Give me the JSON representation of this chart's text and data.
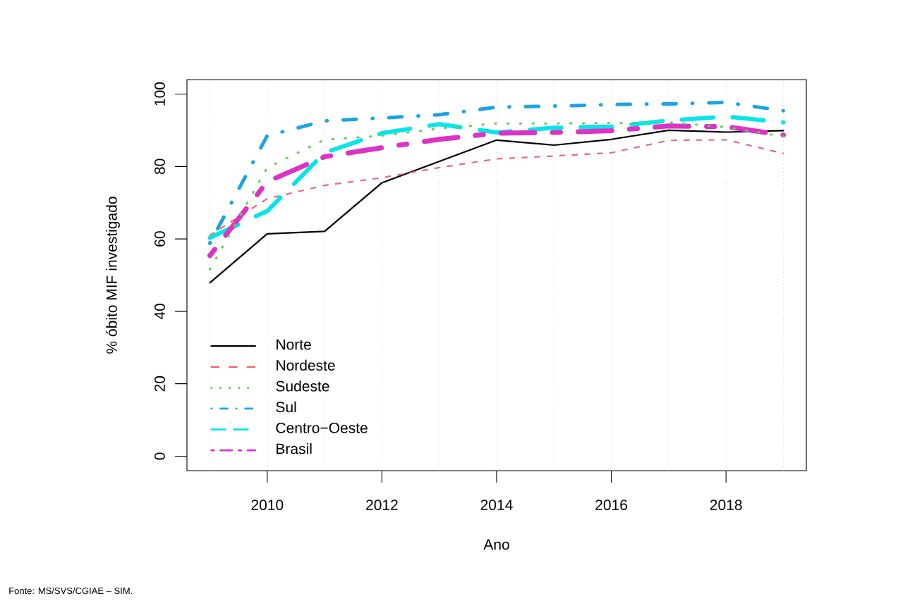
{
  "chart_data": {
    "type": "line",
    "xlabel": "Ano",
    "ylabel": "% óbito MIF investigado",
    "x": [
      2009,
      2010,
      2011,
      2012,
      2013,
      2014,
      2015,
      2016,
      2017,
      2018,
      2019
    ],
    "xlim": [
      2008.6,
      2019.4
    ],
    "xticks": [
      2010,
      2012,
      2014,
      2016,
      2018
    ],
    "ylim": [
      -4,
      104
    ],
    "yticks": [
      0,
      20,
      40,
      60,
      80,
      100
    ],
    "series": [
      {
        "name": "Norte",
        "color": "#000000",
        "line_style": "solid",
        "values": [
          47.9,
          61.4,
          62.1,
          75.5,
          81.4,
          87.3,
          85.9,
          87.5,
          90.0,
          89.5,
          89.9
        ]
      },
      {
        "name": "Nordeste",
        "color": "#E86A77",
        "line_style": "dashed",
        "values": [
          61.0,
          71.1,
          74.8,
          76.9,
          79.7,
          82.1,
          82.9,
          83.8,
          87.2,
          87.4,
          83.6
        ]
      },
      {
        "name": "Sudeste",
        "color": "#61D04F",
        "line_style": "dotted",
        "values": [
          51.6,
          79.7,
          87.4,
          88.5,
          90.5,
          91.9,
          91.9,
          92.0,
          92.2,
          90.9,
          88.3
        ]
      },
      {
        "name": "Sul",
        "color": "#1AA3E6",
        "line_style": "dashdot",
        "values": [
          58.8,
          88.5,
          92.6,
          93.4,
          94.3,
          96.4,
          96.7,
          97.1,
          97.3,
          97.7,
          95.4
        ]
      },
      {
        "name": "Centro−Oeste",
        "color": "#05E5E8",
        "line_style": "longdash",
        "values": [
          60.3,
          67.7,
          83.8,
          89.2,
          91.7,
          89.4,
          90.7,
          91.0,
          92.7,
          93.8,
          92.2
        ]
      },
      {
        "name": "Brasil",
        "color": "#DC32C5",
        "line_style": "twodash",
        "values": [
          55.4,
          75.8,
          82.7,
          85.2,
          87.5,
          89.2,
          89.4,
          89.9,
          91.2,
          91.0,
          88.7
        ]
      }
    ],
    "ref_lines": [
      {
        "axis": "x",
        "value": 2009,
        "color": "#D3D3D3",
        "line_style": "dotted"
      },
      {
        "axis": "x",
        "value": 2010,
        "color": "#D3D3D3",
        "line_style": "dotted"
      },
      {
        "axis": "x",
        "value": 2011,
        "color": "#D3D3D3",
        "line_style": "dotted"
      },
      {
        "axis": "x",
        "value": 2012,
        "color": "#D3D3D3",
        "line_style": "dotted"
      },
      {
        "axis": "x",
        "value": 2013,
        "color": "#D3D3D3",
        "line_style": "dotted"
      },
      {
        "axis": "x",
        "value": 2014,
        "color": "#D3D3D3",
        "line_style": "dotted"
      },
      {
        "axis": "x",
        "value": 2015,
        "color": "#D3D3D3",
        "line_style": "dotted"
      },
      {
        "axis": "x",
        "value": 2016,
        "color": "#D3D3D3",
        "line_style": "dotted"
      },
      {
        "axis": "x",
        "value": 2017,
        "color": "#D3D3D3",
        "line_style": "dotted"
      },
      {
        "axis": "x",
        "value": 2018,
        "color": "#D3D3D3",
        "line_style": "dotted"
      },
      {
        "axis": "x",
        "value": 2019,
        "color": "#D3D3D3",
        "line_style": "dotted"
      }
    ],
    "legend": "bottom left",
    "annotations": [
      "Fonte: MS/SVS/CGIAE – SIM."
    ]
  }
}
